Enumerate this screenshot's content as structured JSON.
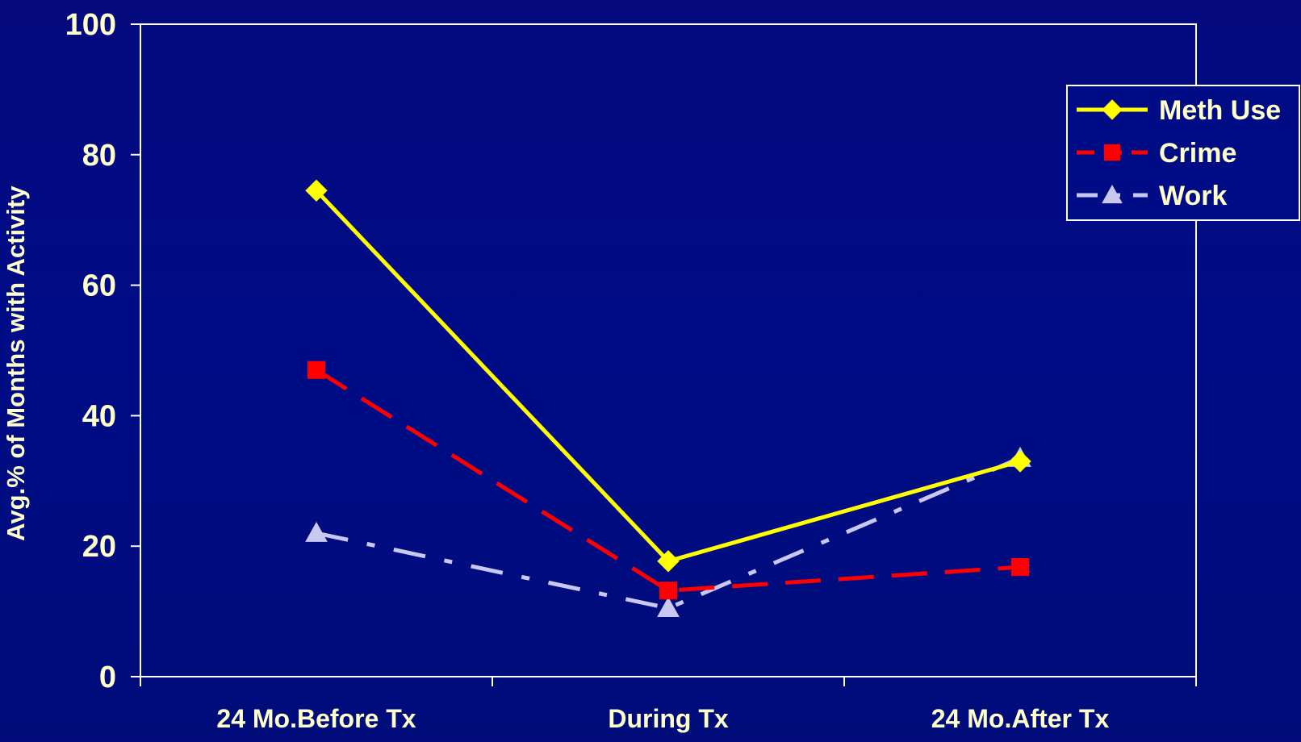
{
  "chart_data": {
    "type": "line",
    "categories": [
      "24 Mo.Before Tx",
      "During Tx",
      "24 Mo.After Tx"
    ],
    "ylabel": "Avg.% of Months with Activity",
    "ylim": [
      0,
      100
    ],
    "yticks": [
      0,
      20,
      40,
      60,
      80,
      100
    ],
    "legend_position": "top-right",
    "series": [
      {
        "name": "Meth Use",
        "values": [
          74.5,
          17.7,
          33.0
        ],
        "color": "#ffff00",
        "marker": "diamond",
        "line_style": "solid"
      },
      {
        "name": "Crime",
        "values": [
          47.0,
          13.2,
          16.8
        ],
        "color": "#ff0000",
        "marker": "square",
        "line_style": "dashed"
      },
      {
        "name": "Work",
        "values": [
          22.0,
          10.5,
          33.5
        ],
        "color": "#c8c8f0",
        "marker": "triangle",
        "line_style": "dash-dot"
      }
    ],
    "colors": {
      "background": "#000c86",
      "axis": "#ffffff",
      "text": "#ffffcc",
      "legend_bg": "#000c86",
      "legend_text": "#ffffcc"
    }
  }
}
